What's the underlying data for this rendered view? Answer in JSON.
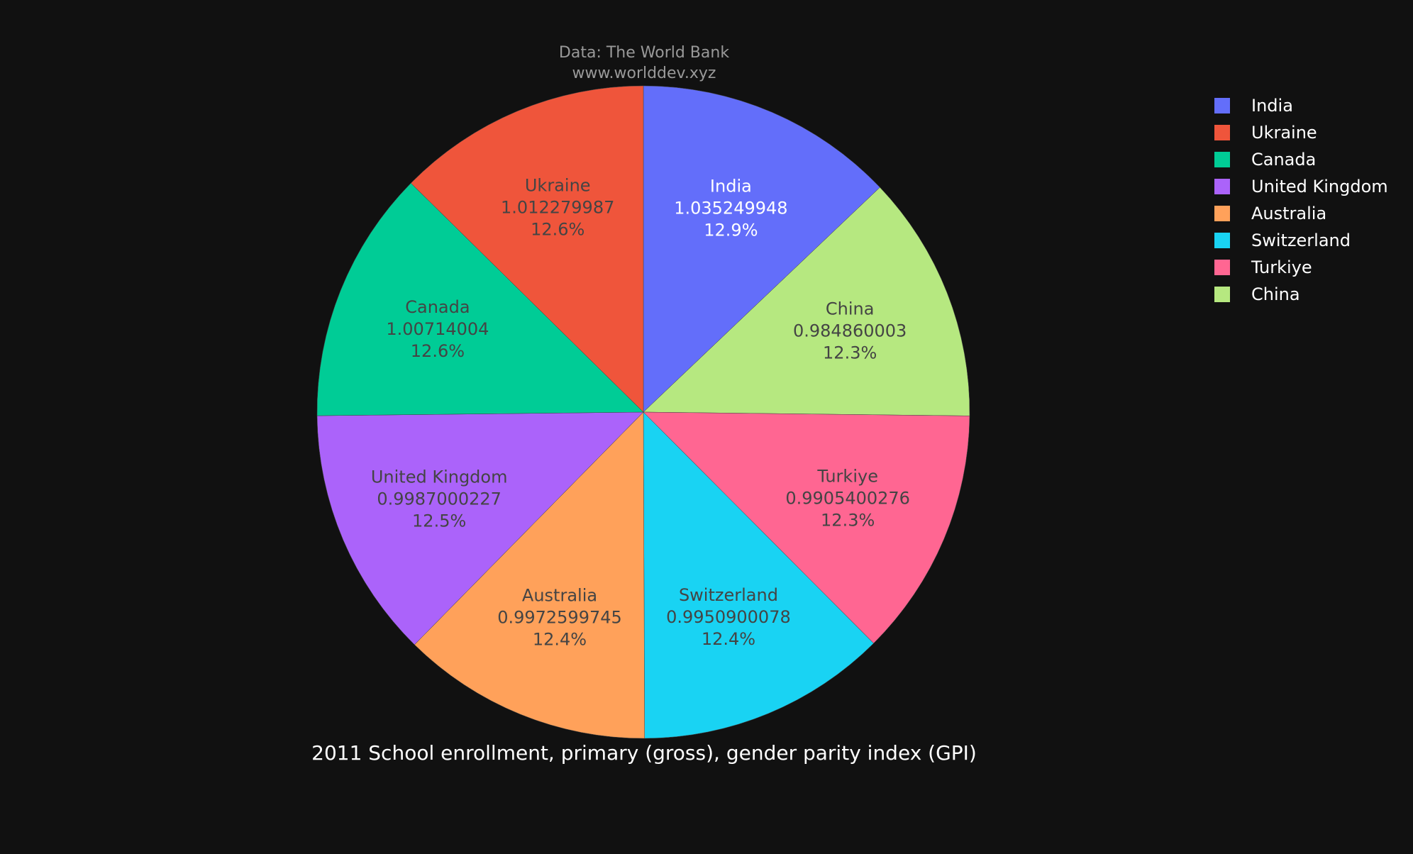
{
  "chart_data": {
    "type": "pie",
    "source_line1": "Data: The World Bank",
    "source_line2": "www.worlddev.xyz",
    "title": "2011 School enrollment, primary (gross), gender parity index (GPI)",
    "slices": [
      {
        "label": "India",
        "value": 1.035249948,
        "value_text": "1.035249948",
        "percent_text": "12.9%",
        "color": "#636efa",
        "text_color": "#ffffff"
      },
      {
        "label": "China",
        "value": 0.984860003,
        "value_text": "0.984860003",
        "percent_text": "12.3%",
        "color": "#b6e880",
        "text_color": "#444444"
      },
      {
        "label": "Turkiye",
        "value": 0.9905400276,
        "value_text": "0.9905400276",
        "percent_text": "12.3%",
        "color": "#ff6692",
        "text_color": "#444444"
      },
      {
        "label": "Switzerland",
        "value": 0.9950900078,
        "value_text": "0.9950900078",
        "percent_text": "12.4%",
        "color": "#19d3f3",
        "text_color": "#444444"
      },
      {
        "label": "Australia",
        "value": 0.9972599745,
        "value_text": "0.9972599745",
        "percent_text": "12.4%",
        "color": "#ffa15a",
        "text_color": "#444444"
      },
      {
        "label": "United Kingdom",
        "value": 0.9987000227,
        "value_text": "0.9987000227",
        "percent_text": "12.5%",
        "color": "#ab63fa",
        "text_color": "#444444"
      },
      {
        "label": "Canada",
        "value": 1.00714004,
        "value_text": "1.00714004",
        "percent_text": "12.6%",
        "color": "#00cc96",
        "text_color": "#444444"
      },
      {
        "label": "Ukraine",
        "value": 1.012279987,
        "value_text": "1.012279987",
        "percent_text": "12.6%",
        "color": "#ef553b",
        "text_color": "#444444"
      }
    ],
    "legend": {
      "placement": "top-right",
      "items": [
        {
          "label": "India",
          "color": "#636efa"
        },
        {
          "label": "Ukraine",
          "color": "#ef553b"
        },
        {
          "label": "Canada",
          "color": "#00cc96"
        },
        {
          "label": "United Kingdom",
          "color": "#ab63fa"
        },
        {
          "label": "Australia",
          "color": "#ffa15a"
        },
        {
          "label": "Switzerland",
          "color": "#19d3f3"
        },
        {
          "label": "Turkiye",
          "color": "#ff6692"
        },
        {
          "label": "China",
          "color": "#b6e880"
        }
      ]
    },
    "background_color": "#111111",
    "source_text_color": "#999999",
    "title_color": "#ffffff"
  }
}
